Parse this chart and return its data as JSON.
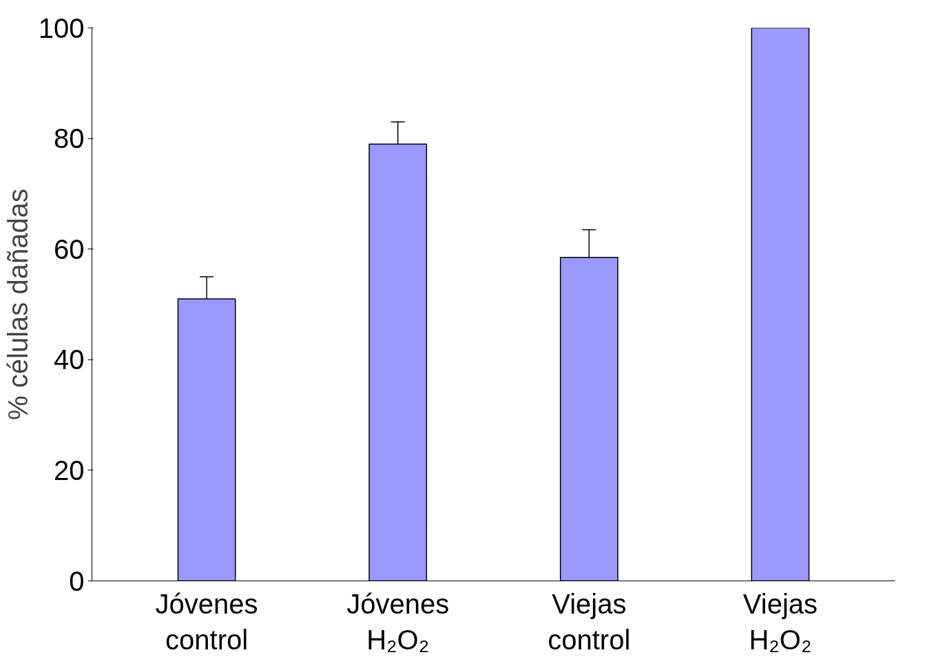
{
  "chart_data": {
    "type": "bar",
    "ylabel": "% células dañadas",
    "categories": [
      "Jóvenes\ncontrol",
      "Jóvenes\nH₂O₂",
      "Viejas\ncontrol",
      "Viejas\nH₂O₂"
    ],
    "values": [
      51,
      79,
      58.5,
      100
    ],
    "errors": [
      4,
      4,
      5,
      null
    ],
    "color": "#9999ff",
    "ylim": [
      0,
      100
    ],
    "yticks": [
      0,
      20,
      40,
      60,
      80,
      100
    ],
    "grid": false
  }
}
